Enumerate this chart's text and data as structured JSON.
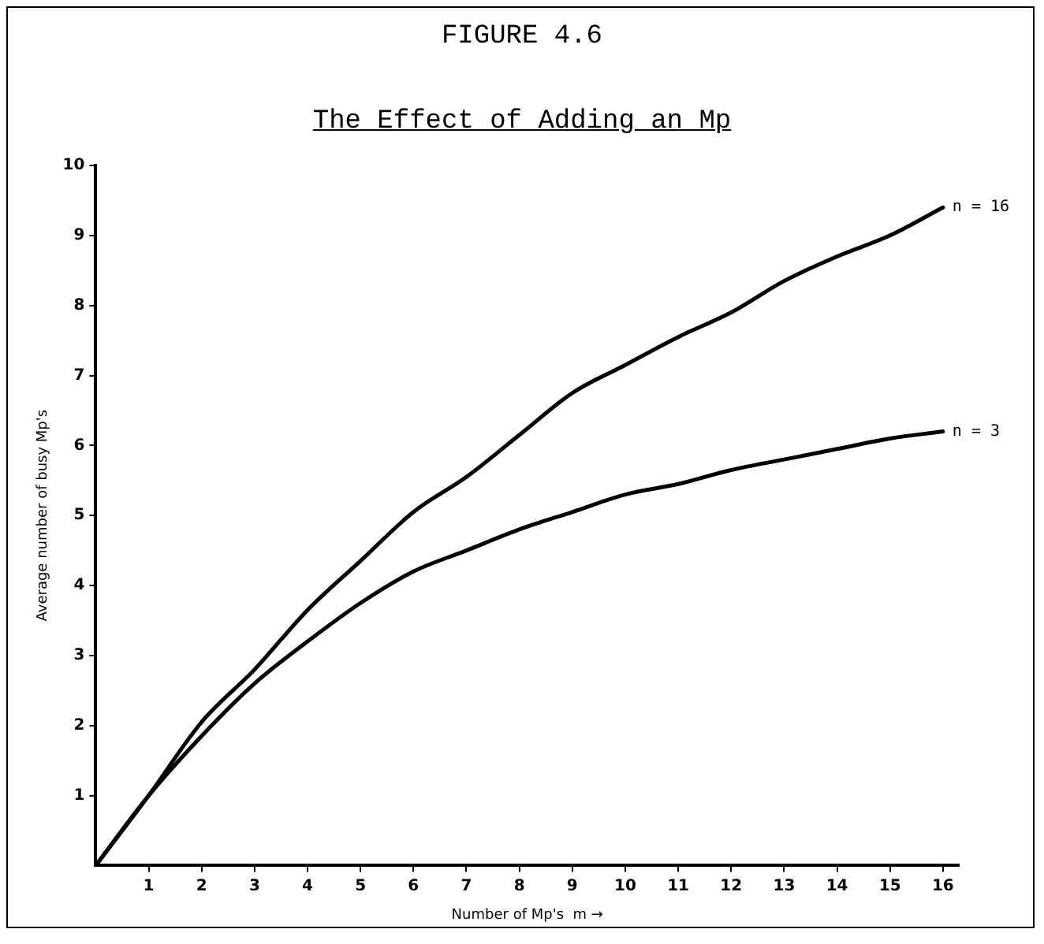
{
  "chart_data": {
    "type": "line",
    "title": "FIGURE 4.6",
    "subtitle": "The Effect of Adding an Mp",
    "xlabel": "Number of Mp's  m →",
    "ylabel": "Average number of busy Mp's",
    "x": [
      0,
      1,
      2,
      3,
      4,
      5,
      6,
      7,
      8,
      9,
      10,
      11,
      12,
      13,
      14,
      15,
      16
    ],
    "series": [
      {
        "name": "n = 16",
        "color": "#000000",
        "values": [
          0,
          1.0,
          2.05,
          2.8,
          3.65,
          4.35,
          5.05,
          5.55,
          6.15,
          6.75,
          7.15,
          7.55,
          7.9,
          8.35,
          8.7,
          9.0,
          9.4
        ]
      },
      {
        "name": "n = 3",
        "color": "#000000",
        "values": [
          0,
          1.0,
          1.85,
          2.6,
          3.2,
          3.75,
          4.2,
          4.5,
          4.8,
          5.05,
          5.3,
          5.45,
          5.65,
          5.8,
          5.95,
          6.1,
          6.2
        ]
      }
    ],
    "xlim": [
      0,
      16.3
    ],
    "xticks": [
      1,
      2,
      3,
      4,
      5,
      6,
      7,
      8,
      9,
      10,
      11,
      12,
      13,
      14,
      15,
      16
    ],
    "ylim": [
      0,
      10
    ],
    "yticks": [
      1,
      2,
      3,
      4,
      5,
      6,
      7,
      8,
      9,
      10
    ],
    "grid": false,
    "legend": false,
    "marker": "none",
    "line_style": "solid"
  }
}
